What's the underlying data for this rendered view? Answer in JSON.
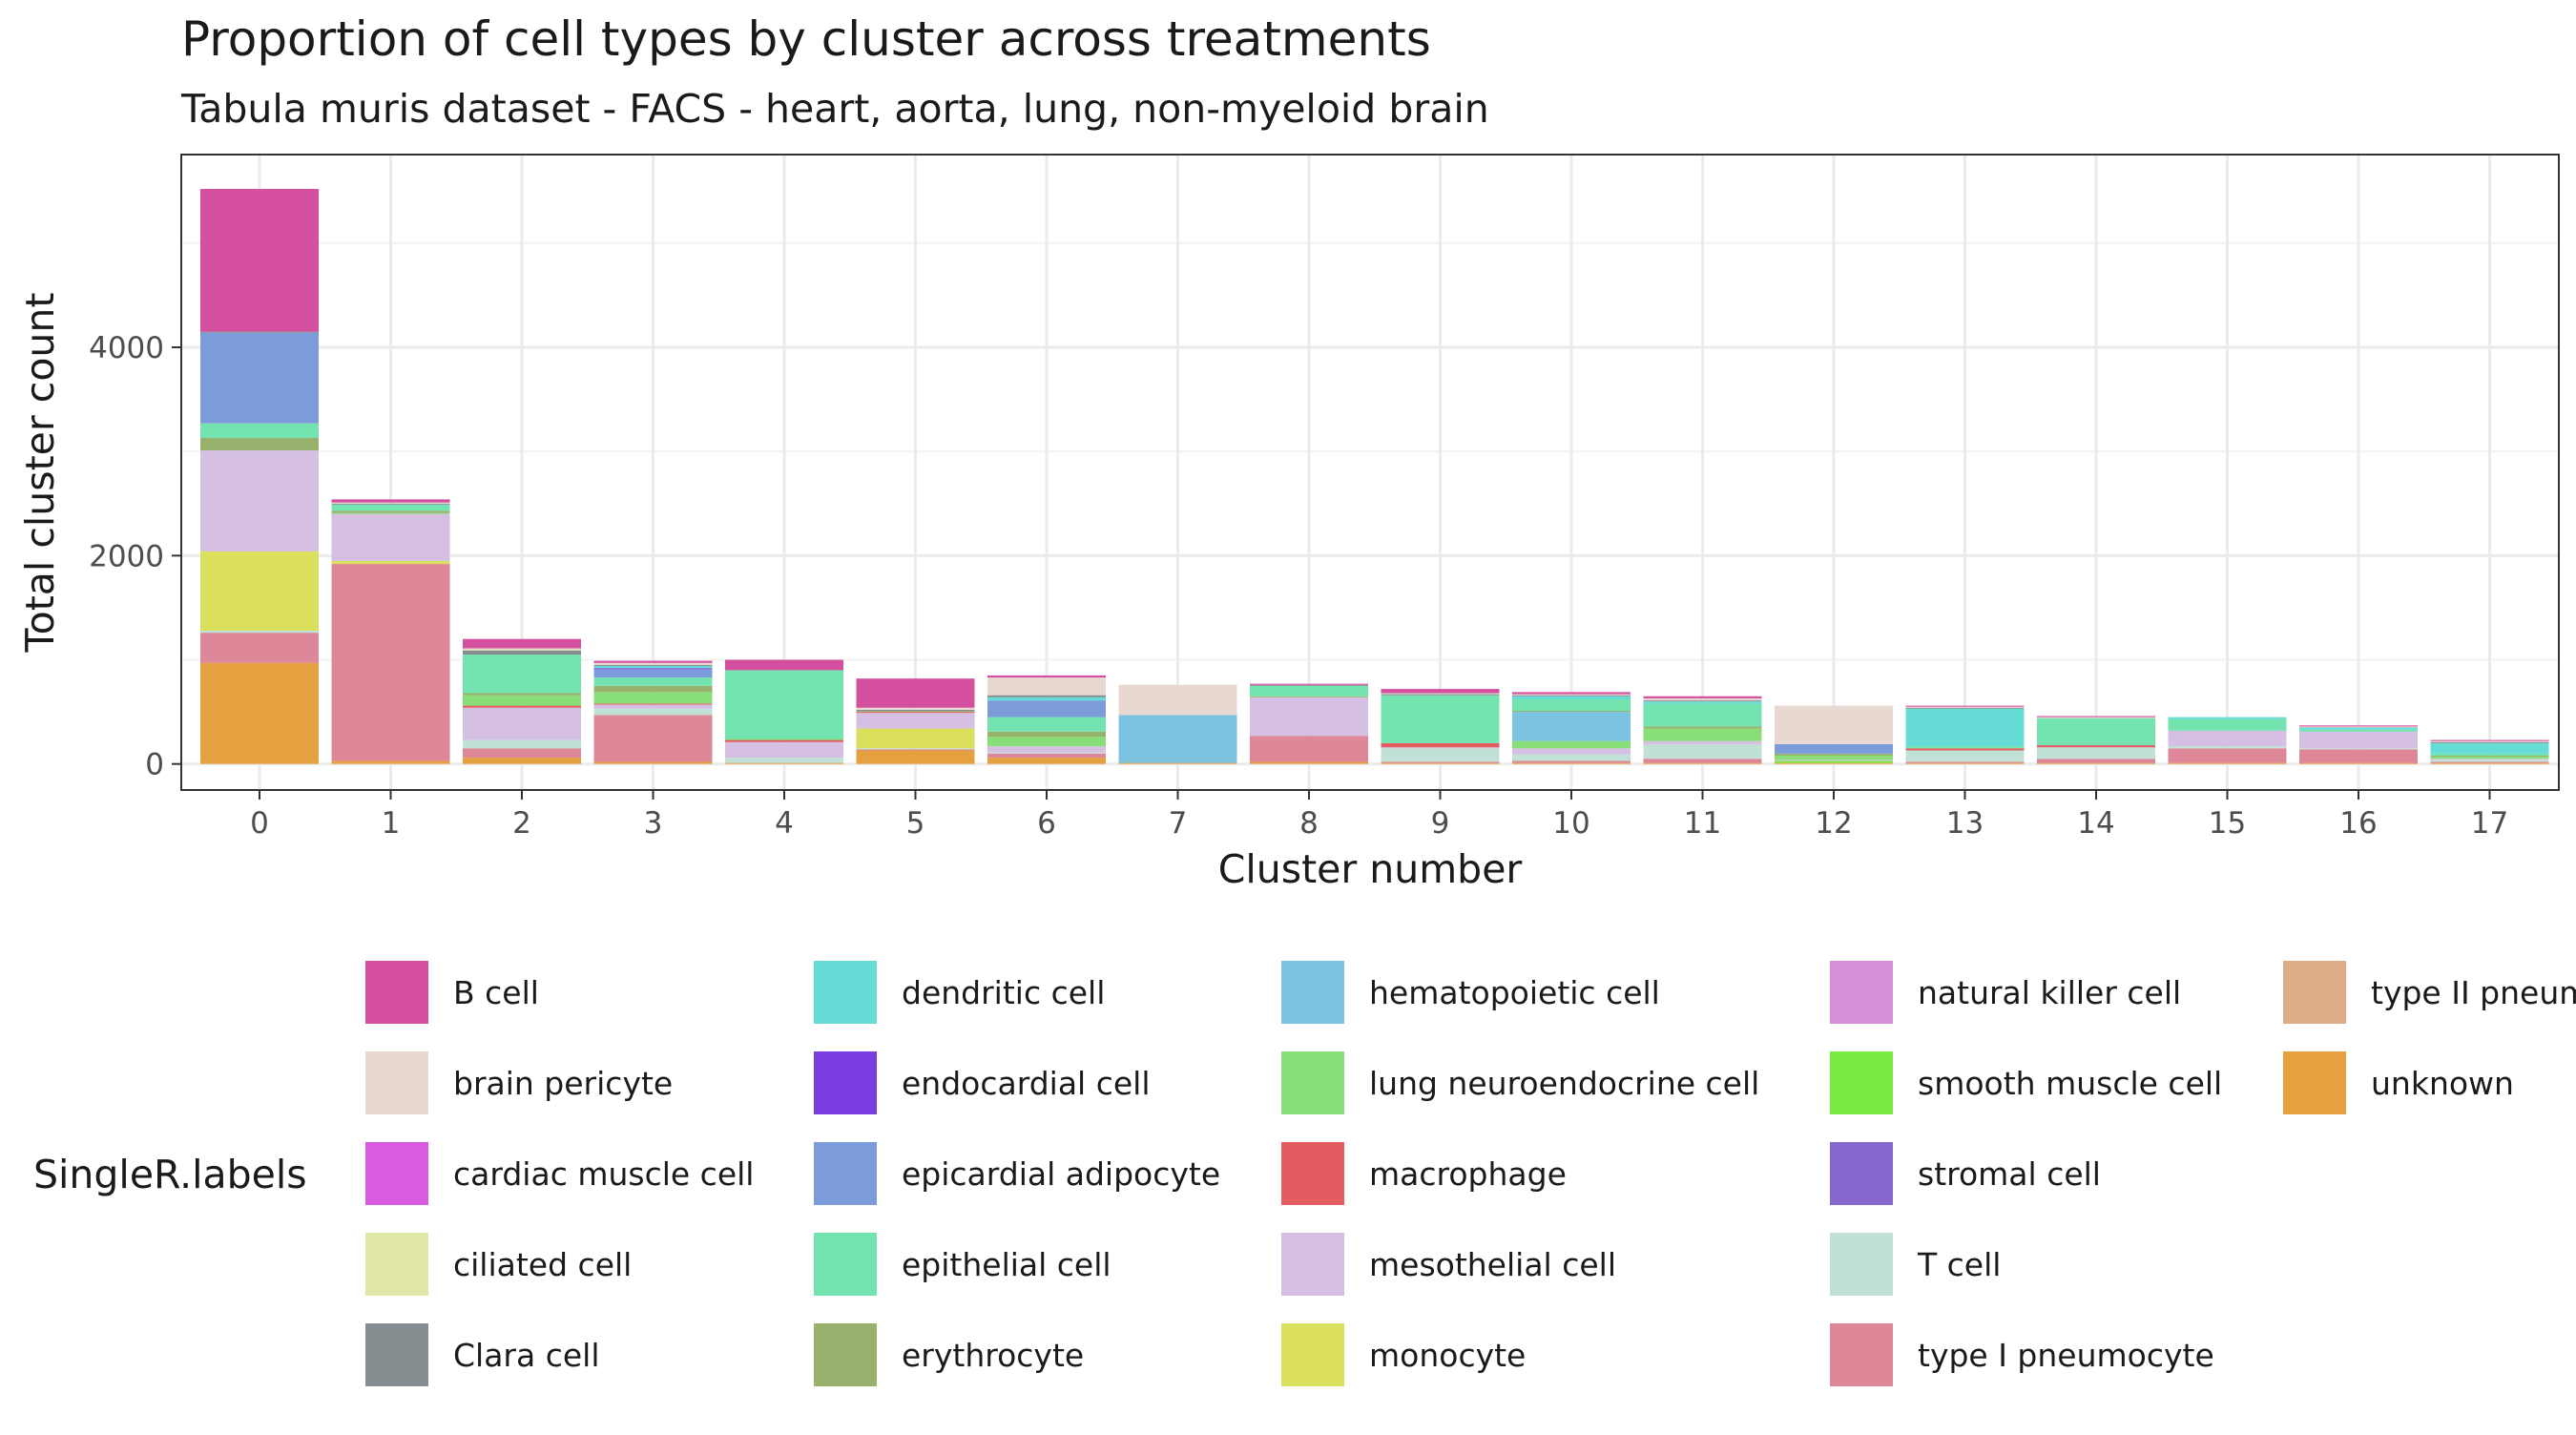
{
  "chart_data": {
    "type": "bar",
    "stacked": true,
    "title": "Proportion of cell types by cluster across treatments",
    "subtitle": "Tabula muris dataset - FACS - heart, aorta, lung, non-myeloid brain",
    "xlabel": "Cluster number",
    "ylabel": "Total cluster count",
    "legend_title": "SingleR.labels",
    "legend_position": "bottom",
    "grid": true,
    "ylim": [
      -250,
      5850
    ],
    "yticks": [
      0,
      2000,
      4000
    ],
    "categories": [
      "0",
      "1",
      "2",
      "3",
      "4",
      "5",
      "6",
      "7",
      "8",
      "9",
      "10",
      "11",
      "12",
      "13",
      "14",
      "15",
      "16",
      "17"
    ],
    "series": [
      {
        "name": "B cell",
        "color": "#D44F9E",
        "values": [
          1370,
          30,
          90,
          20,
          100,
          280,
          20,
          0,
          10,
          40,
          20,
          20,
          0,
          10,
          10,
          0,
          10,
          10
        ]
      },
      {
        "name": "brain pericyte",
        "color": "#E8D8D2",
        "values": [
          0,
          10,
          10,
          20,
          0,
          20,
          170,
          290,
          0,
          10,
          10,
          20,
          370,
          10,
          10,
          0,
          10,
          10
        ]
      },
      {
        "name": "cardiac muscle cell",
        "color": "#D95BE0",
        "values": [
          0,
          0,
          0,
          0,
          0,
          0,
          0,
          0,
          0,
          0,
          0,
          0,
          0,
          0,
          0,
          0,
          0,
          0
        ]
      },
      {
        "name": "ciliated cell",
        "color": "#E0E6A6",
        "values": [
          0,
          0,
          10,
          0,
          0,
          0,
          0,
          0,
          0,
          0,
          0,
          0,
          0,
          0,
          0,
          0,
          0,
          0
        ]
      },
      {
        "name": "Clara cell",
        "color": "#858D91",
        "values": [
          10,
          10,
          40,
          10,
          0,
          10,
          20,
          0,
          10,
          10,
          10,
          10,
          0,
          10,
          0,
          0,
          0,
          10
        ]
      },
      {
        "name": "dendritic cell",
        "color": "#66DCD6",
        "values": [
          0,
          0,
          0,
          20,
          0,
          0,
          30,
          0,
          0,
          0,
          30,
          20,
          0,
          360,
          0,
          20,
          20,
          100
        ]
      },
      {
        "name": "endocardial cell",
        "color": "#7A3EE0",
        "values": [
          0,
          0,
          0,
          10,
          0,
          0,
          0,
          0,
          0,
          0,
          0,
          0,
          0,
          0,
          0,
          0,
          0,
          0
        ]
      },
      {
        "name": "epicardial adipocyte",
        "color": "#7C9BDA",
        "values": [
          870,
          0,
          0,
          80,
          0,
          0,
          160,
          0,
          0,
          0,
          0,
          0,
          90,
          0,
          0,
          0,
          0,
          0
        ]
      },
      {
        "name": "epithelial cell",
        "color": "#73E3B0",
        "values": [
          140,
          60,
          370,
          80,
          660,
          0,
          140,
          0,
          100,
          460,
          110,
          220,
          0,
          20,
          260,
          110,
          20,
          20
        ]
      },
      {
        "name": "erythrocyte",
        "color": "#98B26E",
        "values": [
          120,
          20,
          20,
          60,
          0,
          10,
          50,
          0,
          10,
          0,
          10,
          20,
          20,
          0,
          0,
          0,
          0,
          10
        ]
      },
      {
        "name": "hematopoietic cell",
        "color": "#7BC3E0",
        "values": [
          0,
          0,
          0,
          0,
          0,
          0,
          0,
          460,
          0,
          0,
          280,
          0,
          0,
          0,
          0,
          0,
          0,
          0
        ]
      },
      {
        "name": "lung neuroendocrine cell",
        "color": "#88DF78",
        "values": [
          0,
          10,
          100,
          110,
          10,
          0,
          90,
          0,
          0,
          0,
          70,
          120,
          40,
          0,
          0,
          0,
          0,
          20
        ]
      },
      {
        "name": "macrophage",
        "color": "#E45B60",
        "values": [
          0,
          0,
          20,
          10,
          20,
          10,
          0,
          0,
          0,
          40,
          0,
          0,
          0,
          20,
          20,
          0,
          0,
          0
        ]
      },
      {
        "name": "mesothelial cell",
        "color": "#D5BFE3",
        "values": [
          970,
          450,
          310,
          40,
          150,
          150,
          60,
          0,
          370,
          10,
          60,
          30,
          10,
          0,
          0,
          150,
          160,
          10
        ]
      },
      {
        "name": "monocyte",
        "color": "#DBE05C",
        "values": [
          760,
          30,
          0,
          0,
          0,
          190,
          0,
          0,
          0,
          0,
          0,
          0,
          0,
          0,
          0,
          0,
          0,
          0
        ]
      },
      {
        "name": "natural killer cell",
        "color": "#D68ED9",
        "values": [
          0,
          0,
          0,
          0,
          0,
          0,
          0,
          0,
          0,
          0,
          0,
          0,
          0,
          0,
          0,
          0,
          0,
          0
        ]
      },
      {
        "name": "smooth muscle cell",
        "color": "#7AEA44",
        "values": [
          0,
          0,
          0,
          0,
          0,
          0,
          0,
          0,
          0,
          0,
          0,
          0,
          20,
          0,
          0,
          0,
          0,
          0
        ]
      },
      {
        "name": "stromal cell",
        "color": "#8667CF",
        "values": [
          0,
          0,
          0,
          0,
          0,
          0,
          0,
          0,
          0,
          0,
          0,
          0,
          0,
          0,
          0,
          0,
          0,
          0
        ]
      },
      {
        "name": "T cell",
        "color": "#C1E0D6",
        "values": [
          20,
          0,
          80,
          60,
          50,
          10,
          10,
          0,
          0,
          130,
          60,
          140,
          0,
          110,
          110,
          20,
          10,
          20
        ]
      },
      {
        "name": "type I pneumocyte",
        "color": "#DE8798",
        "values": [
          290,
          1890,
          90,
          450,
          0,
          10,
          40,
          0,
          250,
          10,
          20,
          40,
          0,
          10,
          40,
          140,
          130,
          10
        ]
      },
      {
        "name": "type II pneumocyte",
        "color": "#DEAC89",
        "values": [
          0,
          0,
          0,
          0,
          0,
          0,
          0,
          0,
          0,
          0,
          0,
          0,
          0,
          0,
          0,
          0,
          0,
          0
        ]
      },
      {
        "name": "unknown",
        "color": "#E5A03F",
        "values": [
          970,
          30,
          60,
          20,
          10,
          130,
          60,
          10,
          20,
          10,
          10,
          10,
          10,
          10,
          10,
          10,
          10,
          10
        ]
      }
    ]
  }
}
